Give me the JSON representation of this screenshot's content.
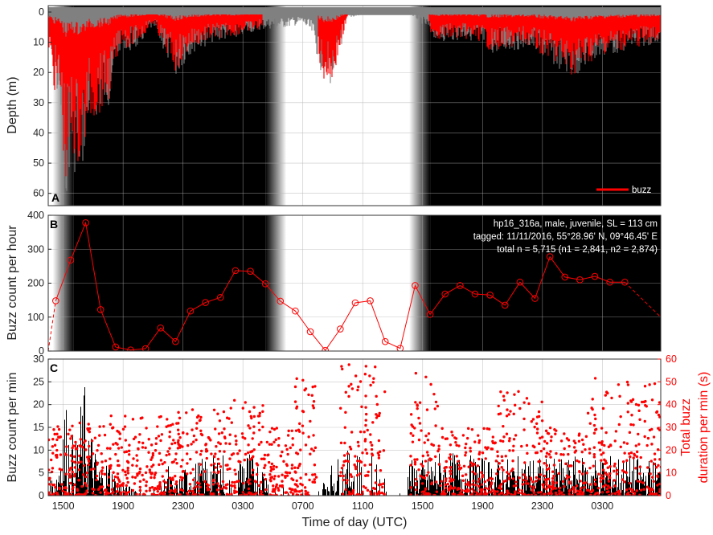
{
  "colors": {
    "depth": "#808080",
    "buzz": "#ff0000",
    "night": "#000000",
    "day": "#ffffff",
    "bars": "#000000"
  },
  "xlabel": "Time of day (UTC)",
  "x_ticks": [
    "1500",
    "1900",
    "2300",
    "0300",
    "0700",
    "1100",
    "1500",
    "1900",
    "2300",
    "0300"
  ],
  "chart_data": [
    {
      "panel": "A",
      "type": "area",
      "ylabel": "Depth (m)",
      "ylim": [
        0,
        63
      ],
      "y_reversed": true,
      "yticks": [
        "0",
        "10",
        "20",
        "30",
        "40",
        "50",
        "60"
      ],
      "legend": "buzz",
      "legend_position": "bottom-right",
      "x_range_hours": [
        0,
        40.9
      ],
      "x_start_time": "1400",
      "night_periods_hours": [
        [
          1.7,
          14.5
        ],
        [
          25.5,
          40.9
        ]
      ],
      "grid": true,
      "max_depth_profile": {
        "hours": [
          0,
          0.3,
          0.8,
          1.2,
          1.5,
          2.0,
          2.3,
          2.7,
          3.2,
          4.0,
          4.9,
          5.3,
          6.0,
          7.0,
          8.5,
          9.5,
          11.0,
          12.4,
          13.0,
          14.0,
          16.0,
          17.0,
          17.6,
          18.5,
          19.0,
          20.0,
          21.0,
          24.0,
          25.0,
          26.0,
          28.0,
          29.0,
          29.5,
          32.0,
          35.0,
          37.0,
          40.9
        ],
        "depth_m": [
          12,
          22,
          35,
          62,
          48,
          58,
          52,
          38,
          35,
          32,
          10,
          14,
          12,
          5,
          22,
          14,
          10,
          9,
          8,
          6,
          5,
          4,
          8,
          25,
          24,
          2,
          1,
          0,
          4,
          10,
          9,
          11,
          14,
          12,
          22,
          15,
          10
        ]
      },
      "buzz_depth_profile": {
        "hours": [
          0,
          0.3,
          0.8,
          1.2,
          1.5,
          2.0,
          2.3,
          2.7,
          3.2,
          4.0,
          4.9,
          5.3,
          6.0,
          7.0,
          8.5,
          9.5,
          11.0,
          12.4,
          13.0,
          14.0,
          16.0,
          17.0,
          17.6,
          18.5,
          19.0,
          20.0,
          21.0,
          24.0,
          25.0,
          26.0,
          28.0,
          29.0,
          29.5,
          32.0,
          35.0,
          37.0,
          40.9
        ],
        "depth_m": [
          10,
          25,
          30,
          62,
          45,
          52,
          50,
          37,
          35,
          30,
          9,
          12,
          10,
          4,
          20,
          12,
          9,
          8,
          7,
          6,
          5,
          4,
          8,
          24,
          23,
          2,
          1,
          0,
          4,
          9,
          9,
          10,
          13,
          11,
          21,
          14,
          10
        ]
      }
    },
    {
      "panel": "B",
      "type": "line",
      "ylabel": "Buzz count per hour",
      "ylim": [
        0,
        400
      ],
      "yticks": [
        "0",
        "100",
        "200",
        "300",
        "400"
      ],
      "info_lines": [
        "hp16_316a, male, juvenile, SL = 113 cm",
        "tagged: 11/11/2016, 55°28.96' N, 09°46.45' E",
        "total n = 5,715 (n1 = 2,841, n2 = 2,874)"
      ],
      "series": [
        {
          "name": "buzz count per hour",
          "hours": [
            0.5,
            1.5,
            2.5,
            3.5,
            4.5,
            5.5,
            6.5,
            7.5,
            8.5,
            9.5,
            10.5,
            11.5,
            12.5,
            13.5,
            14.5,
            15.5,
            16.5,
            17.5,
            18.5,
            19.5,
            20.5,
            21.5,
            22.5,
            23.5,
            24.5,
            25.5,
            26.5,
            27.5,
            28.5,
            29.5,
            30.5,
            31.5,
            32.5,
            33.5,
            34.5,
            35.5,
            36.5,
            37.5,
            38.5,
            39.5
          ],
          "values": [
            148,
            268,
            378,
            122,
            12,
            3,
            7,
            68,
            28,
            118,
            143,
            158,
            237,
            235,
            198,
            147,
            118,
            57,
            2,
            65,
            142,
            148,
            28,
            8,
            193,
            108,
            168,
            193,
            168,
            165,
            135,
            203,
            155,
            278,
            218,
            210,
            220,
            203,
            203,
            0
          ]
        }
      ],
      "dashed_edge_segments": true
    },
    {
      "panel": "C",
      "type": "bar",
      "ylabel": "Buzz count per min",
      "ylim": [
        0,
        30
      ],
      "yticks": [
        "0",
        "5",
        "10",
        "15",
        "20",
        "25",
        "30"
      ],
      "right_ylabel_lines": [
        "Total buzz",
        "duration per min (s)"
      ],
      "right_ylim": [
        0,
        60
      ],
      "right_yticks": [
        "0",
        "10",
        "20",
        "30",
        "40",
        "50",
        "60"
      ],
      "bar_envelope": {
        "hours": [
          0,
          0.6,
          1.0,
          1.4,
          1.8,
          2.2,
          2.5,
          2.8,
          3.2,
          3.6,
          4.0,
          4.5,
          5.5,
          6.2,
          7.5,
          8.0,
          8.4,
          9.0,
          10.0,
          12.0,
          13.0,
          14.0,
          14.8,
          15.5,
          17.0,
          18.5,
          19.0,
          20.0,
          21.0,
          22.0,
          23.4,
          24.0,
          25.0,
          26.0,
          28.0,
          30.0,
          32.0,
          34.0,
          36.0,
          38.0,
          40.5
        ],
        "count": [
          3,
          7,
          25,
          16,
          12,
          22,
          26,
          16,
          9,
          6,
          9,
          4,
          2,
          2,
          2,
          7,
          2,
          6,
          8,
          10,
          11,
          8,
          5,
          2,
          2,
          4,
          8,
          10,
          10,
          8,
          0,
          8,
          8,
          10,
          9,
          8,
          9,
          8,
          9,
          9,
          8
        ]
      },
      "duration_scatter_bands": {
        "hours_bins": [
          [
            0,
            4
          ],
          [
            4,
            8
          ],
          [
            8,
            12
          ],
          [
            12,
            14.5
          ],
          [
            14.5,
            16.5
          ],
          [
            16.5,
            18
          ],
          [
            19.5,
            22.5
          ],
          [
            24.2,
            26
          ],
          [
            26,
            30
          ],
          [
            30,
            33
          ],
          [
            33,
            36
          ],
          [
            36,
            38
          ],
          [
            38,
            41
          ]
        ],
        "max_seconds": [
          32,
          36,
          38,
          42,
          30,
          52,
          58,
          54,
          30,
          46,
          30,
          52,
          50
        ]
      }
    }
  ]
}
